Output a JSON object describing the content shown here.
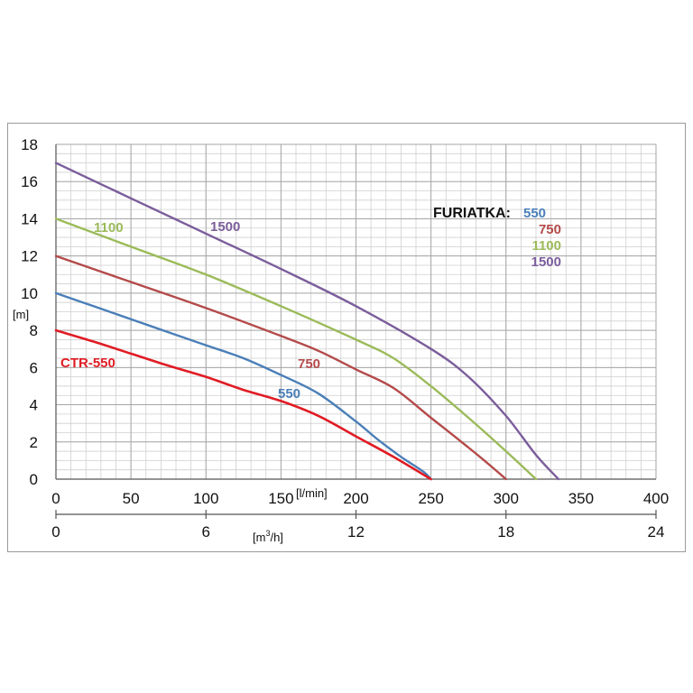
{
  "chart_data": {
    "type": "line",
    "xlabel": "[l/min]",
    "x2label": "[m³/h]",
    "ylabel": "[m]",
    "xlim": [
      0,
      400
    ],
    "ylim": [
      0,
      18
    ],
    "x_ticks": [
      "0",
      "50",
      "100",
      "150",
      "200",
      "250",
      "300",
      "350",
      "400"
    ],
    "y_ticks": [
      "0",
      "2",
      "4",
      "6",
      "8",
      "10",
      "12",
      "14",
      "16",
      "18"
    ],
    "x2_ticks": [
      "0",
      "6",
      "12",
      "18",
      "24"
    ],
    "x2_tick_values": [
      0,
      6,
      12,
      18,
      24
    ],
    "x2_lim": [
      0,
      24
    ],
    "grid": true,
    "legend": {
      "title": "FURIATKA:",
      "placement": "top-right",
      "entries": [
        "550",
        "750",
        "1100",
        "1500"
      ]
    },
    "series": [
      {
        "name": "CTR-550",
        "color": "#e01c24",
        "label": "CTR-550",
        "x": [
          0,
          25,
          50,
          75,
          100,
          125,
          150,
          175,
          200,
          225,
          250
        ],
        "y": [
          8,
          7.4,
          6.75,
          6.1,
          5.5,
          4.8,
          4.2,
          3.4,
          2.3,
          1.2,
          0
        ]
      },
      {
        "name": "550",
        "color": "#4a7fb8",
        "label": "550",
        "x": [
          0,
          25,
          50,
          75,
          100,
          125,
          150,
          175,
          200,
          215,
          230,
          245,
          250
        ],
        "y": [
          10,
          9.3,
          8.6,
          7.9,
          7.2,
          6.5,
          5.6,
          4.6,
          3.1,
          2.1,
          1.2,
          0.4,
          0
        ]
      },
      {
        "name": "750",
        "color": "#b44a4a",
        "label": "750",
        "x": [
          0,
          50,
          100,
          150,
          175,
          200,
          225,
          250,
          275,
          290,
          300
        ],
        "y": [
          12,
          10.6,
          9.2,
          7.7,
          6.9,
          5.9,
          4.9,
          3.3,
          1.7,
          0.7,
          0
        ]
      },
      {
        "name": "1100",
        "color": "#9bbb59",
        "label": "1100",
        "x": [
          0,
          50,
          100,
          150,
          200,
          225,
          250,
          275,
          300,
          320
        ],
        "y": [
          14,
          12.5,
          11,
          9.3,
          7.5,
          6.5,
          5,
          3.3,
          1.5,
          0
        ]
      },
      {
        "name": "1500",
        "color": "#7b5d9b",
        "label": "1500",
        "x": [
          0,
          50,
          100,
          150,
          200,
          250,
          275,
          300,
          320,
          335
        ],
        "y": [
          17,
          15.1,
          13.2,
          11.3,
          9.3,
          7,
          5.5,
          3.4,
          1.3,
          0
        ]
      }
    ]
  }
}
